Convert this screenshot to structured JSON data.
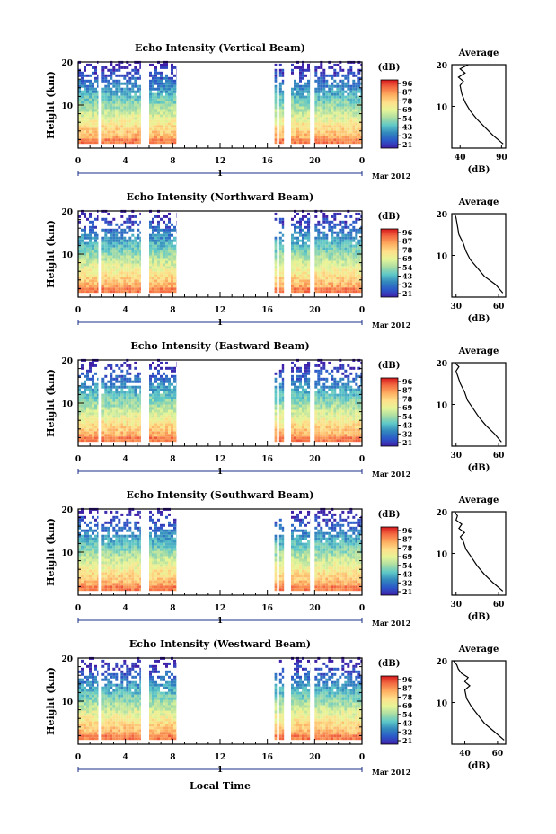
{
  "colorbar": {
    "unit": "(dB)",
    "ticks": [
      "96",
      "87",
      "78",
      "69",
      "54",
      "43",
      "32",
      "21"
    ],
    "stops": [
      "#d7191c",
      "#f46d43",
      "#fdae61",
      "#fee08b",
      "#e6f598",
      "#abdda4",
      "#5ec8c8",
      "#3288bd",
      "#2b58c9",
      "#3f1fa8"
    ]
  },
  "average_title": "Average",
  "average_xlabel": "(dB)",
  "shared_axes": {
    "ylabel": "Height (km)",
    "xticks": [
      "0",
      "4",
      "8",
      "12",
      "16",
      "20",
      "0"
    ],
    "day_marker": "1",
    "month_label": "Mar 2012",
    "xlabel": "Local Time"
  },
  "chart_data": [
    {
      "type": "heatmap",
      "title": "Echo Intensity (Vertical Beam)",
      "x_range_hours": [
        0,
        24
      ],
      "y_range_km": [
        0,
        20
      ],
      "yticks": [
        "20",
        "10"
      ],
      "data_blocks_hours": [
        [
          0,
          1.7
        ],
        [
          2.0,
          5.3
        ],
        [
          6.0,
          8.3
        ],
        [
          16.6,
          16.8
        ],
        [
          17.0,
          17.4
        ],
        [
          18.0,
          19.6
        ],
        [
          20.0,
          24.0
        ]
      ],
      "average_profile": {
        "xticks": [
          "40",
          "90"
        ],
        "xlim": [
          30,
          95
        ],
        "height_km": [
          1,
          3,
          5,
          7,
          9,
          11,
          13,
          15,
          16,
          17,
          18,
          19,
          20
        ],
        "db": [
          92,
          80,
          70,
          60,
          52,
          46,
          42,
          40,
          44,
          38,
          46,
          40,
          50
        ]
      }
    },
    {
      "type": "heatmap",
      "title": "Echo Intensity (Northward Beam)",
      "x_range_hours": [
        0,
        24
      ],
      "y_range_km": [
        0,
        20
      ],
      "yticks": [
        "20",
        "10"
      ],
      "data_blocks_hours": [
        [
          0,
          1.7
        ],
        [
          2.0,
          5.3
        ],
        [
          6.0,
          8.3
        ],
        [
          16.6,
          16.8
        ],
        [
          17.0,
          17.4
        ],
        [
          18.0,
          19.6
        ],
        [
          20.0,
          24.0
        ]
      ],
      "average_profile": {
        "xticks": [
          "30",
          "60"
        ],
        "xlim": [
          27,
          65
        ],
        "height_km": [
          1,
          3,
          5,
          7,
          9,
          11,
          13,
          15,
          17,
          19,
          20
        ],
        "db": [
          63,
          58,
          50,
          45,
          40,
          37,
          35,
          32,
          31,
          30,
          29
        ]
      }
    },
    {
      "type": "heatmap",
      "title": "Echo Intensity (Eastward Beam)",
      "x_range_hours": [
        0,
        24
      ],
      "y_range_km": [
        0,
        20
      ],
      "yticks": [
        "20",
        "10"
      ],
      "data_blocks_hours": [
        [
          0,
          1.7
        ],
        [
          2.0,
          5.3
        ],
        [
          6.0,
          8.3
        ],
        [
          16.6,
          16.8
        ],
        [
          17.0,
          17.4
        ],
        [
          18.0,
          19.6
        ],
        [
          20.0,
          24.0
        ]
      ],
      "average_profile": {
        "xticks": [
          "30",
          "60"
        ],
        "xlim": [
          27,
          65
        ],
        "height_km": [
          1,
          3,
          5,
          7,
          9,
          11,
          13,
          15,
          17,
          18,
          19,
          20
        ],
        "db": [
          62,
          57,
          51,
          46,
          42,
          38,
          36,
          33,
          31,
          30,
          32,
          29
        ]
      }
    },
    {
      "type": "heatmap",
      "title": "Echo Intensity (Southward Beam)",
      "x_range_hours": [
        0,
        24
      ],
      "y_range_km": [
        0,
        20
      ],
      "yticks": [
        "20",
        "10"
      ],
      "data_blocks_hours": [
        [
          0,
          1.7
        ],
        [
          2.0,
          5.3
        ],
        [
          6.0,
          8.3
        ],
        [
          16.6,
          16.8
        ],
        [
          17.0,
          17.4
        ],
        [
          18.0,
          19.6
        ],
        [
          20.0,
          24.0
        ]
      ],
      "average_profile": {
        "xticks": [
          "30",
          "60"
        ],
        "xlim": [
          27,
          65
        ],
        "height_km": [
          1,
          3,
          5,
          7,
          9,
          11,
          13,
          14,
          15,
          16,
          17,
          18,
          19,
          20
        ],
        "db": [
          63,
          56,
          50,
          45,
          41,
          37,
          35,
          33,
          36,
          32,
          34,
          30,
          31,
          29
        ]
      }
    },
    {
      "type": "heatmap",
      "title": "Echo Intensity (Westward Beam)",
      "x_range_hours": [
        0,
        24
      ],
      "y_range_km": [
        0,
        20
      ],
      "yticks": [
        "20",
        "10"
      ],
      "data_blocks_hours": [
        [
          0,
          1.7
        ],
        [
          2.0,
          5.3
        ],
        [
          6.0,
          8.3
        ],
        [
          16.6,
          16.8
        ],
        [
          17.0,
          17.4
        ],
        [
          18.0,
          19.6
        ],
        [
          20.0,
          24.0
        ]
      ],
      "average_profile": {
        "xticks": [
          "40",
          "60"
        ],
        "xlim": [
          32,
          65
        ],
        "height_km": [
          1,
          3,
          5,
          7,
          9,
          11,
          13,
          14,
          15,
          16,
          17,
          18,
          19,
          20
        ],
        "db": [
          64,
          58,
          52,
          48,
          44,
          41,
          40,
          43,
          40,
          42,
          38,
          36,
          35,
          33
        ]
      }
    }
  ]
}
